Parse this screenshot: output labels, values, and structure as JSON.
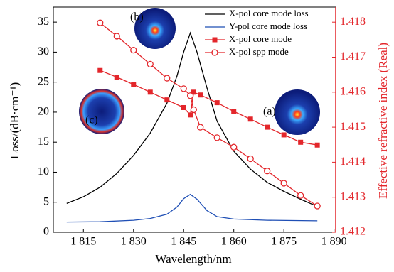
{
  "chart_data": {
    "type": "line",
    "x_label": "Wavelength/nm",
    "y_label": "Loss/(dB·cm⁻¹)",
    "y2_label": "Effective refractive index (Real)",
    "y2_color": "#e3262b",
    "xlim": [
      1806,
      1890.5
    ],
    "xticks": [
      {
        "value": 1815,
        "label": "1 815"
      },
      {
        "value": 1830,
        "label": "1 830"
      },
      {
        "value": 1845,
        "label": "1 845"
      },
      {
        "value": 1860,
        "label": "1 860"
      },
      {
        "value": 1875,
        "label": "1 875"
      },
      {
        "value": 1890,
        "label": "1 890"
      }
    ],
    "ylim": [
      0,
      37.5
    ],
    "yticks": [
      0,
      5,
      10,
      15,
      20,
      25,
      30,
      35
    ],
    "y2lim": [
      1.412,
      1.41843
    ],
    "y2ticks": [
      1.412,
      1.413,
      1.414,
      1.415,
      1.416,
      1.417,
      1.418
    ],
    "legend": "top-right",
    "annotations": [
      "(a)",
      "(b)",
      "(c)"
    ],
    "series": [
      {
        "name": "X-pol core mode loss",
        "color": "#000000",
        "marker": "none",
        "x": [
          1810,
          1815,
          1820,
          1825,
          1830,
          1835,
          1840,
          1843,
          1845,
          1847,
          1849,
          1852,
          1855,
          1860,
          1865,
          1870,
          1875,
          1880,
          1885
        ],
        "values": [
          4.8,
          5.9,
          7.5,
          9.8,
          12.8,
          16.5,
          21.5,
          26,
          30,
          33.2,
          30,
          24,
          18.5,
          13.5,
          10.5,
          8.3,
          6.8,
          5.5,
          4.3
        ]
      },
      {
        "name": "Y-pol core mode loss",
        "color": "#1f4fb5",
        "marker": "none",
        "x": [
          1810,
          1820,
          1830,
          1835,
          1840,
          1843,
          1845,
          1847,
          1849,
          1852,
          1855,
          1860,
          1870,
          1885
        ],
        "values": [
          1.7,
          1.75,
          2.0,
          2.3,
          3.0,
          4.2,
          5.6,
          6.3,
          5.5,
          3.6,
          2.6,
          2.2,
          2.0,
          1.9
        ]
      },
      {
        "name": "X-pol core mode",
        "color": "#e3262b",
        "marker": "square",
        "axis": "y2",
        "x": [
          1820,
          1825,
          1830,
          1835,
          1840,
          1845,
          1847,
          1848,
          1850,
          1855,
          1860,
          1865,
          1870,
          1875,
          1880,
          1885
        ],
        "values": [
          1.41662,
          1.41643,
          1.41622,
          1.416,
          1.41578,
          1.41556,
          1.41535,
          1.416,
          1.41592,
          1.4157,
          1.41545,
          1.41523,
          1.415,
          1.41478,
          1.41457,
          1.41449
        ]
      },
      {
        "name": "X-pol spp mode",
        "color": "#e3262b",
        "marker": "circle-open",
        "axis": "y2",
        "x": [
          1820,
          1825,
          1830,
          1835,
          1840,
          1845,
          1847,
          1848,
          1850,
          1855,
          1860,
          1865,
          1870,
          1875,
          1880,
          1885
        ],
        "values": [
          1.41798,
          1.4176,
          1.4172,
          1.4168,
          1.4164,
          1.4161,
          1.4159,
          1.4155,
          1.415,
          1.4147,
          1.41443,
          1.4141,
          1.41375,
          1.4134,
          1.41305,
          1.41275
        ]
      }
    ]
  }
}
